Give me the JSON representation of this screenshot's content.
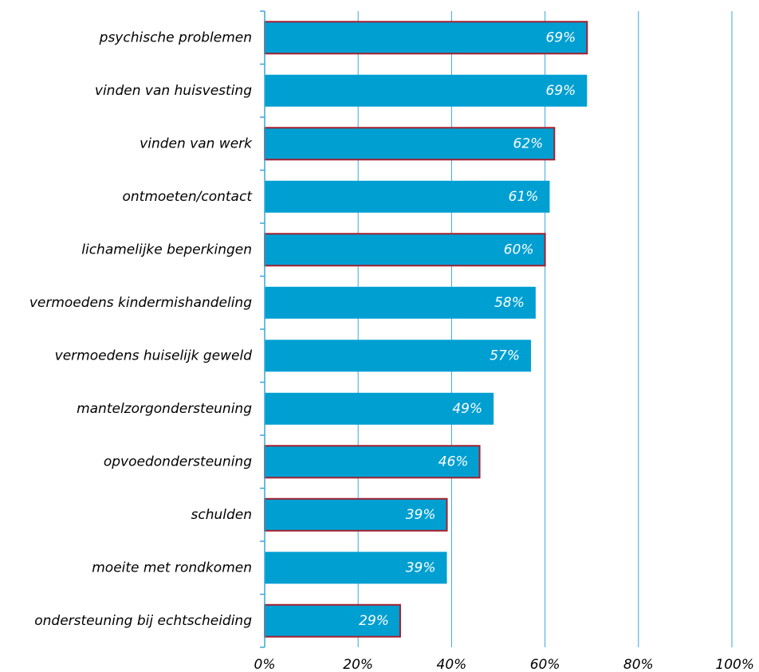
{
  "chart_data": {
    "type": "bar",
    "orientation": "horizontal",
    "categories": [
      "psychische problemen",
      "vinden van huisvesting",
      "vinden van werk",
      "ontmoeten/contact",
      "lichamelijke beperkingen",
      "vermoedens kindermishandeling",
      "vermoedens huiselijk geweld",
      "mantelzorgondersteuning",
      "opvoedondersteuning",
      "schulden",
      "moeite met rondkomen",
      "ondersteuning bij echtscheiding"
    ],
    "values": [
      69,
      69,
      62,
      61,
      60,
      58,
      57,
      49,
      46,
      39,
      39,
      29
    ],
    "value_labels": [
      "69%",
      "69%",
      "62%",
      "61%",
      "60%",
      "58%",
      "57%",
      "49%",
      "46%",
      "39%",
      "39%",
      "29%"
    ],
    "highlighted": [
      true,
      false,
      true,
      false,
      true,
      false,
      false,
      false,
      true,
      true,
      false,
      true
    ],
    "xlim": [
      0,
      100
    ],
    "x_ticks": [
      0,
      20,
      40,
      60,
      80,
      100
    ],
    "x_tick_labels": [
      "0%",
      "20%",
      "40%",
      "60%",
      "80%",
      "100%"
    ],
    "grid": "vertical",
    "title": "",
    "xlabel": "",
    "ylabel": "",
    "colors": {
      "bar_fill": "#009fd2",
      "highlight_border": "#a3202e",
      "grid": "#3aa7d9",
      "axis": "#3aa7d9",
      "value_text": "#ffffff",
      "label_text": "#000000"
    }
  }
}
